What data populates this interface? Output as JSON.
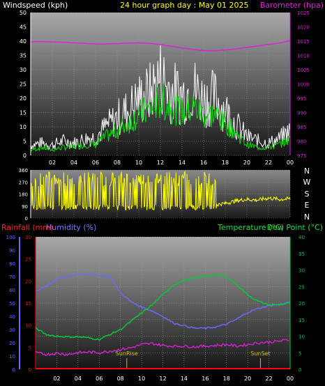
{
  "colors": {
    "bg": "#000000",
    "wind": "#ffffff",
    "wind_avg": "#00dd00",
    "barometer": "#dd22dd",
    "direction": "#ffff00",
    "rain": "#ff0000",
    "humidity": "#6a6aff",
    "temperature": "#00cc33",
    "dewpoint": "#cc22cc",
    "title": "#ffff00",
    "axis_left_top": "#ffffff",
    "sun_marker": "#d4c200"
  },
  "header": {
    "windspeed_label": "Windspeed (kph)",
    "title": "24 hour graph day : May 01 2025",
    "barometer_label": "Barometer (hpa)"
  },
  "middle": {
    "compass_letters": [
      "N",
      "W",
      "S",
      "E",
      "N"
    ]
  },
  "bottom_header": {
    "rainfall_label": "Rainfall (mm)",
    "humidity_label": "Humidity (%)",
    "temperature_label": "Temperature (°C)",
    "dewpoint_label": "Dew Point (°C)"
  },
  "chart_data": [
    {
      "type": "line",
      "title": "24 hour graph day : May 01 2025",
      "xlabel": "",
      "x_ticks": [
        "02",
        "04",
        "06",
        "08",
        "10",
        "12",
        "14",
        "16",
        "18",
        "20",
        "22",
        "00"
      ],
      "ylabel": "Windspeed (kph)",
      "ylim": [
        0,
        50
      ],
      "y_ticks": [
        0,
        5,
        10,
        15,
        20,
        25,
        30,
        35,
        40,
        45,
        50
      ],
      "y2label": "Barometer (hpa)",
      "y2lim": [
        975,
        1025
      ],
      "y2_ticks": [
        975,
        980,
        985,
        990,
        995,
        1000,
        1005,
        1010,
        1015,
        1020,
        1025
      ],
      "grid": true,
      "series": [
        {
          "name": "Windspeed (kph)",
          "axis": "left",
          "kind": "gust",
          "x": [
            0,
            1,
            2,
            3,
            4,
            5,
            6,
            7,
            8,
            9,
            10,
            11,
            12,
            13,
            14,
            15,
            16,
            17,
            18,
            19,
            20,
            21,
            22,
            23,
            24
          ],
          "values": [
            5,
            6,
            5,
            7,
            6,
            8,
            9,
            14,
            18,
            22,
            27,
            30,
            38,
            31,
            29,
            33,
            27,
            28,
            22,
            15,
            9,
            7,
            6,
            8,
            12
          ]
        },
        {
          "name": "Windspeed (kph)",
          "axis": "left",
          "kind": "average",
          "x": [
            0,
            1,
            2,
            3,
            4,
            5,
            6,
            7,
            8,
            9,
            10,
            11,
            12,
            13,
            14,
            15,
            16,
            17,
            18,
            19,
            20,
            21,
            22,
            23,
            24
          ],
          "values": [
            2,
            3,
            2,
            3,
            3,
            4,
            4,
            7,
            9,
            12,
            15,
            17,
            20,
            18,
            16,
            18,
            15,
            15,
            12,
            8,
            4,
            3,
            3,
            4,
            6
          ]
        },
        {
          "name": "Barometer (hpa)",
          "axis": "right",
          "x": [
            0,
            1,
            2,
            3,
            4,
            5,
            6,
            7,
            8,
            9,
            10,
            11,
            12,
            13,
            14,
            15,
            16,
            17,
            18,
            19,
            20,
            21,
            22,
            23,
            24
          ],
          "values": [
            1014.8,
            1014.8,
            1014.7,
            1014.6,
            1014.4,
            1014.2,
            1014.0,
            1014.0,
            1014.1,
            1014.3,
            1014.4,
            1014.2,
            1013.8,
            1013.2,
            1012.6,
            1012.1,
            1011.7,
            1011.6,
            1011.9,
            1012.3,
            1012.8,
            1013.3,
            1013.8,
            1014.3,
            1015.2
          ]
        }
      ]
    },
    {
      "type": "line",
      "ylabel": "Wind direction",
      "ylim": [
        0,
        360
      ],
      "y_ticks": [
        0,
        90,
        180,
        270,
        360
      ],
      "x_ticks": [
        "02",
        "04",
        "06",
        "08",
        "10",
        "12",
        "14",
        "16",
        "18",
        "20",
        "22",
        "00"
      ],
      "series": [
        {
          "name": "Wind direction",
          "axis": "left",
          "x": [
            0,
            1,
            2,
            3,
            4,
            5,
            6,
            7,
            8,
            9,
            10,
            11,
            12,
            13,
            14,
            15,
            16,
            17,
            18,
            19,
            20,
            21,
            22,
            23,
            24
          ],
          "values": [
            200,
            320,
            180,
            260,
            300,
            170,
            250,
            320,
            200,
            60,
            250,
            310,
            180,
            300,
            90,
            260,
            300,
            100,
            110,
            130,
            140,
            135,
            150,
            140,
            145
          ]
        }
      ]
    },
    {
      "type": "line",
      "x_ticks": [
        "02",
        "04",
        "06",
        "08",
        "10",
        "12",
        "14",
        "16",
        "18",
        "20",
        "22",
        "00"
      ],
      "y_left_rain_ticks": [
        0,
        5,
        10,
        15,
        20,
        25,
        30
      ],
      "y_left_rain_lim": [
        0,
        30
      ],
      "y_left_humidity_ticks": [
        0,
        10,
        20,
        30,
        40,
        50,
        60,
        70,
        80,
        90,
        100
      ],
      "y_left_humidity_lim": [
        0,
        100
      ],
      "y2lim": [
        0,
        40
      ],
      "y2_ticks": [
        0,
        5,
        10,
        15,
        20,
        25,
        30,
        35,
        40
      ],
      "annotations": [
        {
          "text": "SunRise",
          "x": 8.6
        },
        {
          "text": "SunSet",
          "x": 21.2
        }
      ],
      "series": [
        {
          "name": "Rainfall (mm)",
          "axis": "rain",
          "x": [
            0,
            24
          ],
          "values": [
            0,
            0
          ]
        },
        {
          "name": "Humidity (%)",
          "axis": "humidity",
          "x": [
            0,
            1,
            2,
            3,
            4,
            5,
            6,
            7,
            8,
            9,
            10,
            11,
            12,
            13,
            14,
            15,
            16,
            17,
            18,
            19,
            20,
            21,
            22,
            23,
            24
          ],
          "values": [
            59,
            63,
            68,
            70,
            72,
            72,
            71,
            70,
            58,
            51,
            47,
            44,
            40,
            35,
            33,
            31,
            31,
            32,
            34,
            38,
            43,
            46,
            48,
            49,
            51
          ]
        },
        {
          "name": "Temperature (°C)",
          "axis": "right",
          "x": [
            0,
            1,
            2,
            3,
            4,
            5,
            6,
            7,
            8,
            9,
            10,
            11,
            12,
            13,
            14,
            15,
            16,
            17,
            18,
            19,
            20,
            21,
            22,
            23,
            24
          ],
          "values": [
            12.5,
            10.5,
            10.0,
            9.8,
            9.8,
            9.5,
            9.0,
            10.5,
            12.0,
            14.5,
            17.0,
            19.5,
            22.5,
            25.5,
            26.8,
            27.5,
            28.2,
            28.5,
            28.0,
            25.5,
            22.5,
            20.5,
            19.5,
            19.5,
            20.0
          ]
        },
        {
          "name": "Dew Point (°C)",
          "axis": "right",
          "x": [
            0,
            1,
            2,
            3,
            4,
            5,
            6,
            7,
            8,
            9,
            10,
            11,
            12,
            13,
            14,
            15,
            16,
            17,
            18,
            19,
            20,
            21,
            22,
            23,
            24
          ],
          "values": [
            5.0,
            4.5,
            4.8,
            4.5,
            5.0,
            5.2,
            5.0,
            5.5,
            6.0,
            6.5,
            7.5,
            7.8,
            7.2,
            7.0,
            7.0,
            6.8,
            7.0,
            7.2,
            7.5,
            7.0,
            7.5,
            8.0,
            8.2,
            8.5,
            9.0
          ]
        }
      ]
    }
  ]
}
